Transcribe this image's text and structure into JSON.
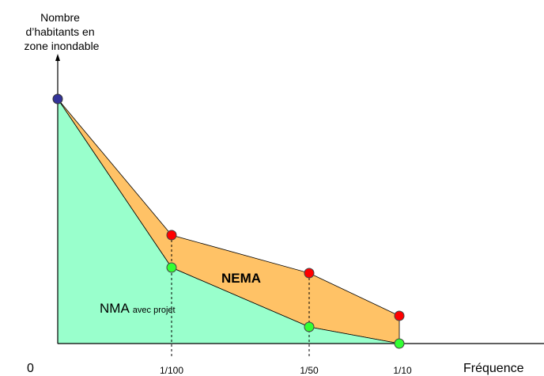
{
  "y_axis_title": [
    "Nombre",
    "d’habitants en",
    "zone inondable"
  ],
  "x_axis_title": "Fréquence",
  "origin_label": "0",
  "x_ticks": [
    "1/100",
    "1/50",
    "1/10"
  ],
  "region_labels": {
    "nema": "NEMA",
    "nma": "NMA",
    "nma_suffix": "avec projet"
  },
  "colors": {
    "nma_area": "#99FFCC",
    "nema_area": "#FFC266",
    "points_without_project": "#FF0000",
    "points_with_project": "#33FF33",
    "start_point": "#333399"
  }
}
